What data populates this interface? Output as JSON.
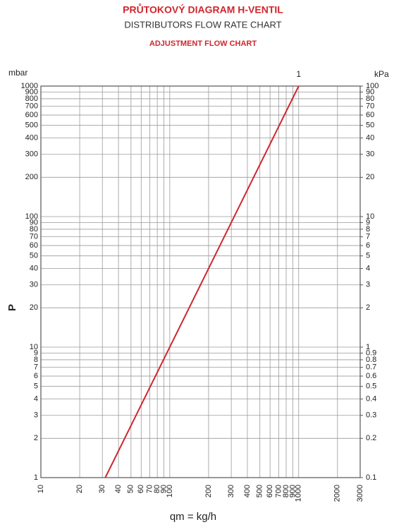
{
  "chart_data": {
    "type": "line",
    "title": "PRŮTOKOVÝ DIAGRAM H-VENTIL",
    "subtitle": "DISTRIBUTORS FLOW RATE CHART",
    "annotation": "ADJUSTMENT FLOW CHART",
    "y_unit": "mbar",
    "y2_unit": "kPa",
    "ylabel": "P",
    "xlabel": "qm = kg/h",
    "log_x": true,
    "log_y": true,
    "grid": true,
    "xlim": [
      10,
      3000
    ],
    "ylim": [
      1,
      1000
    ],
    "y2lim": [
      0.1,
      100
    ],
    "xticks": [
      10,
      20,
      30,
      40,
      50,
      60,
      70,
      80,
      90,
      100,
      200,
      300,
      400,
      500,
      600,
      700,
      800,
      900,
      1000,
      2000,
      3000
    ],
    "yticks": [
      1,
      2,
      3,
      4,
      5,
      6,
      7,
      8,
      9,
      10,
      20,
      30,
      40,
      50,
      60,
      70,
      80,
      90,
      100,
      200,
      300,
      400,
      500,
      600,
      700,
      800,
      900,
      1000
    ],
    "y2ticks": [
      0.1,
      0.2,
      0.3,
      0.4,
      0.5,
      0.6,
      0.7,
      0.8,
      0.9,
      1,
      2,
      3,
      4,
      5,
      6,
      7,
      8,
      9,
      10,
      20,
      30,
      40,
      50,
      60,
      70,
      80,
      90,
      100
    ],
    "series": [
      {
        "name": "1",
        "color": "#d0262d",
        "x": [
          31.6,
          1000
        ],
        "values": [
          1,
          1000
        ]
      }
    ]
  }
}
